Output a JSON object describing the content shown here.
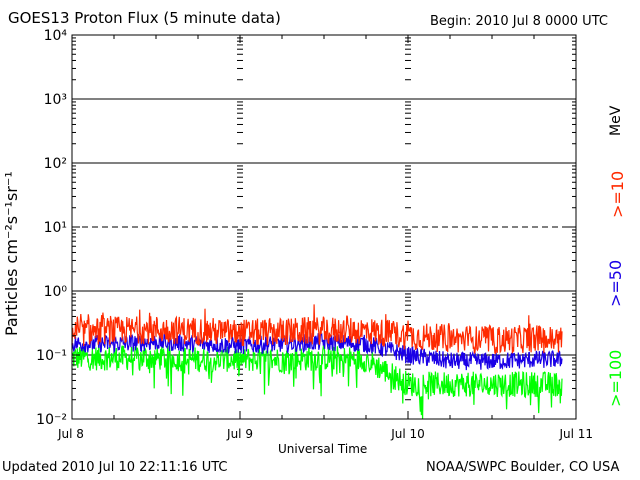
{
  "title": "GOES13 Proton Flux (5 minute data)",
  "begin_label": "Begin: 2010 Jul 8 0000 UTC",
  "updated_label": "Updated 2010 Jul 10 22:11:16 UTC",
  "credit_label": "NOAA/SWPC Boulder, CO USA",
  "ylabel": "Particles cm⁻²s⁻¹sr⁻¹",
  "legend_unit": "MeV",
  "colors": {
    "ge10": "#ff2a00",
    "ge50": "#1a00e6",
    "ge100": "#00ff00",
    "axis": "#000000"
  },
  "chart_data": {
    "type": "line",
    "title": "GOES13 Proton Flux (5 minute data)",
    "xlabel": "Universal Time",
    "ylabel": "Particles cm⁻²s⁻¹sr⁻¹",
    "yscale": "log",
    "ylim": [
      0.01,
      10000
    ],
    "y_ticks": [
      {
        "value": 0.01,
        "label": "10⁻²"
      },
      {
        "value": 0.1,
        "label": "10⁻¹"
      },
      {
        "value": 1,
        "label": "10⁰"
      },
      {
        "value": 10,
        "label": "10¹"
      },
      {
        "value": 100,
        "label": "10²"
      },
      {
        "value": 1000,
        "label": "10³"
      },
      {
        "value": 10000,
        "label": "10⁴"
      }
    ],
    "x_ticks": [
      "Jul 8",
      "Jul 9",
      "Jul 10",
      "Jul 11"
    ],
    "reference_lines": [
      {
        "value": 1000,
        "style": "solid"
      },
      {
        "value": 100,
        "style": "solid"
      },
      {
        "value": 10,
        "style": "dashed"
      },
      {
        "value": 1,
        "style": "solid"
      },
      {
        "value": 0.1,
        "style": "solid"
      }
    ],
    "x": [
      "Jul 8 00:00",
      "Jul 8 06:00",
      "Jul 8 12:00",
      "Jul 8 18:00",
      "Jul 9 00:00",
      "Jul 9 06:00",
      "Jul 9 12:00",
      "Jul 9 18:00",
      "Jul 10 00:00",
      "Jul 10 06:00",
      "Jul 10 12:00",
      "Jul 10 18:00",
      "Jul 10 22:00"
    ],
    "series": [
      {
        "name": ">=10",
        "color": "#ff2a00",
        "values": [
          0.22,
          0.24,
          0.25,
          0.24,
          0.22,
          0.23,
          0.24,
          0.24,
          0.2,
          0.18,
          0.17,
          0.18,
          0.17
        ]
      },
      {
        "name": ">=50",
        "color": "#1a00e6",
        "values": [
          0.15,
          0.15,
          0.16,
          0.15,
          0.14,
          0.15,
          0.16,
          0.15,
          0.1,
          0.08,
          0.08,
          0.085,
          0.085
        ]
      },
      {
        "name": ">=100",
        "color": "#00ff00",
        "values": [
          0.09,
          0.09,
          0.09,
          0.085,
          0.085,
          0.085,
          0.09,
          0.085,
          0.035,
          0.035,
          0.035,
          0.035,
          0.035
        ]
      }
    ],
    "legend": [
      ">=10",
      ">=50",
      ">=100"
    ],
    "legend_placement": "right",
    "grid": false
  }
}
